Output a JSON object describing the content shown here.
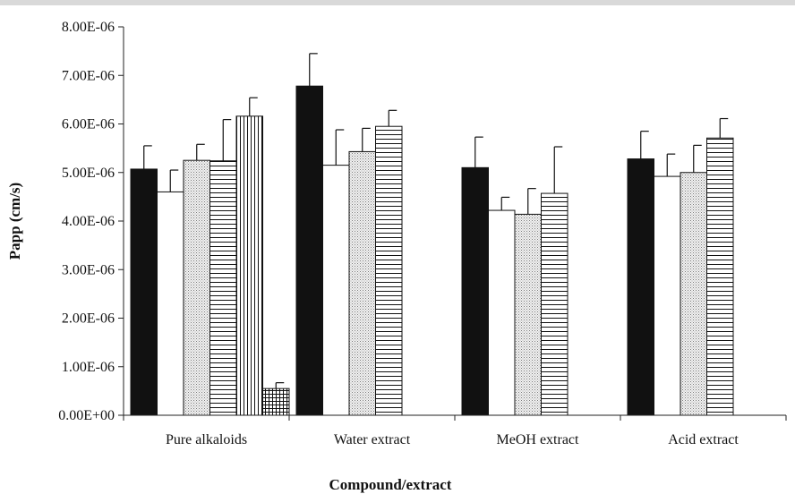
{
  "chart_data": {
    "type": "bar",
    "title": "",
    "xlabel": "Compound/extract",
    "ylabel": "Papp (cm/s)",
    "categories": [
      "Pure alkaloids",
      "Water extract",
      "MeOH extract",
      "Acid extract"
    ],
    "ylim": [
      0,
      8e-06
    ],
    "yticks": [
      0,
      1e-06,
      2e-06,
      3e-06,
      4e-06,
      5e-06,
      6e-06,
      7e-06,
      8e-06
    ],
    "ytick_labels": [
      "0.00E+00",
      "1.00E-06",
      "2.00E-06",
      "3.00E-06",
      "4.00E-06",
      "5.00E-06",
      "6.00E-06",
      "7.00E-06",
      "8.00E-06"
    ],
    "grid": false,
    "legend": "none",
    "series": [
      {
        "fill": "solid-black",
        "values": [
          5.07e-06,
          6.78e-06,
          5.1e-06,
          5.28e-06
        ],
        "errors": [
          4.8e-07,
          6.7e-07,
          6.3e-07,
          5.7e-07
        ]
      },
      {
        "fill": "white",
        "values": [
          4.6e-06,
          5.15e-06,
          4.22e-06,
          4.92e-06
        ],
        "errors": [
          4.5e-07,
          7.3e-07,
          2.7e-07,
          4.6e-07
        ]
      },
      {
        "fill": "dotted",
        "values": [
          5.25e-06,
          5.43e-06,
          4.14e-06,
          5e-06
        ],
        "errors": [
          3.3e-07,
          4.8e-07,
          5.3e-07,
          5.6e-07
        ]
      },
      {
        "fill": "horizontal-lines",
        "values": [
          5.24e-06,
          5.95e-06,
          4.57e-06,
          5.71e-06
        ],
        "errors": [
          8.5e-07,
          3.3e-07,
          9.6e-07,
          4e-07
        ]
      },
      {
        "fill": "vertical-lines",
        "values": [
          6.16e-06,
          null,
          null,
          null
        ],
        "errors": [
          3.8e-07,
          null,
          null,
          null
        ]
      },
      {
        "fill": "crosshatch",
        "values": [
          5.5e-07,
          null,
          null,
          null
        ],
        "errors": [
          1.2e-07,
          null,
          null,
          null
        ]
      }
    ]
  }
}
